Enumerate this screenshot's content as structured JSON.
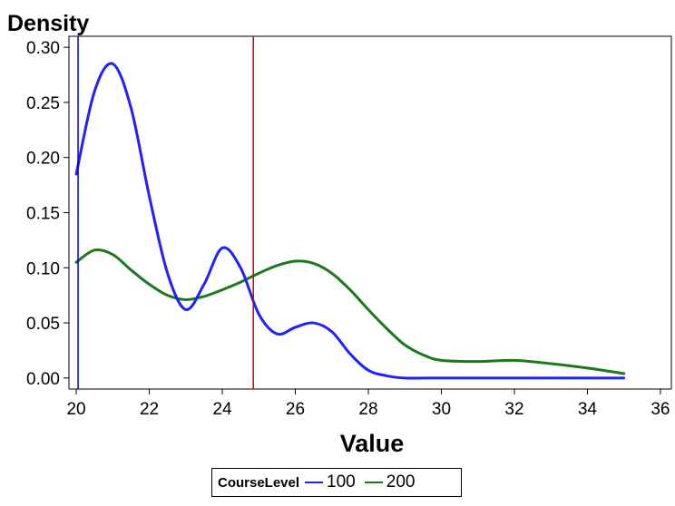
{
  "chart_data": {
    "type": "line",
    "title": "",
    "xlabel": "Value",
    "ylabel": "Density",
    "xlim": [
      19.8,
      36.3
    ],
    "ylim": [
      -0.01,
      0.31
    ],
    "xticks": [
      20,
      22,
      24,
      26,
      28,
      30,
      32,
      34,
      36
    ],
    "yticks": [
      "0.00",
      "0.05",
      "0.10",
      "0.15",
      "0.20",
      "0.25",
      "0.30"
    ],
    "legend": {
      "title": "CourseLevel",
      "position": "bottom"
    },
    "series": [
      {
        "name": "100",
        "color": "#1f1fff",
        "x": [
          20,
          20.5,
          21,
          21.5,
          22,
          22.5,
          23,
          23.5,
          24,
          24.5,
          25,
          25.5,
          26,
          26.5,
          27,
          27.5,
          28,
          28.5,
          29,
          30,
          31,
          32,
          33,
          34,
          35
        ],
        "y": [
          0.185,
          0.26,
          0.285,
          0.245,
          0.165,
          0.095,
          0.062,
          0.085,
          0.118,
          0.1,
          0.058,
          0.04,
          0.046,
          0.05,
          0.042,
          0.022,
          0.007,
          0.002,
          0.0,
          0.0,
          0.0,
          0.0,
          0.0,
          0.0,
          0.0
        ]
      },
      {
        "name": "200",
        "color": "#1a7a1a",
        "x": [
          20,
          20.5,
          21,
          21.5,
          22,
          22.5,
          23,
          23.5,
          24,
          24.5,
          25,
          25.5,
          26,
          26.5,
          27,
          27.5,
          28,
          28.5,
          29,
          29.5,
          30,
          31,
          32,
          33,
          34,
          35
        ],
        "y": [
          0.105,
          0.116,
          0.112,
          0.098,
          0.085,
          0.075,
          0.071,
          0.074,
          0.08,
          0.087,
          0.095,
          0.102,
          0.106,
          0.104,
          0.095,
          0.08,
          0.062,
          0.045,
          0.03,
          0.021,
          0.016,
          0.015,
          0.016,
          0.013,
          0.009,
          0.004
        ]
      }
    ],
    "reference_lines": [
      {
        "axis": "x",
        "value": 20.05,
        "color": "#0000cc"
      },
      {
        "axis": "x",
        "value": 24.85,
        "color": "#cc0000"
      }
    ]
  }
}
